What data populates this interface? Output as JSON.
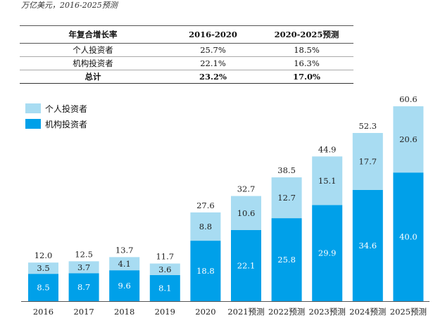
{
  "unit_note": "万亿美元，2016-2025预测",
  "table": {
    "headers": [
      "年复合增长率",
      "2016-2020",
      "2020-2025预测"
    ],
    "rows": [
      [
        "个人投资者",
        "25.7%",
        "18.5%"
      ],
      [
        "机构投资者",
        "22.1%",
        "16.3%"
      ],
      [
        "总计",
        "23.2%",
        "17.0%"
      ]
    ]
  },
  "chart_data": {
    "type": "bar",
    "stacked": true,
    "categories": [
      "2016",
      "2017",
      "2018",
      "2019",
      "2020",
      "2021预测",
      "2022预测",
      "2023预测",
      "2024预测",
      "2025预测"
    ],
    "series": [
      {
        "name": "机构投资者",
        "color": "#00a0e9",
        "values": [
          8.5,
          8.7,
          9.6,
          8.1,
          18.8,
          22.1,
          25.8,
          29.9,
          34.6,
          40.0
        ]
      },
      {
        "name": "个人投资者",
        "color": "#a8dcf2",
        "values": [
          3.5,
          3.7,
          4.1,
          3.6,
          8.8,
          10.6,
          12.7,
          15.1,
          17.7,
          20.6
        ]
      }
    ],
    "totals": [
      12.0,
      12.5,
      13.7,
      11.7,
      27.6,
      32.7,
      38.5,
      44.9,
      52.3,
      60.6
    ],
    "legend": [
      "个人投资者",
      "机构投资者"
    ],
    "legend_position": "top-left",
    "grid": false
  }
}
